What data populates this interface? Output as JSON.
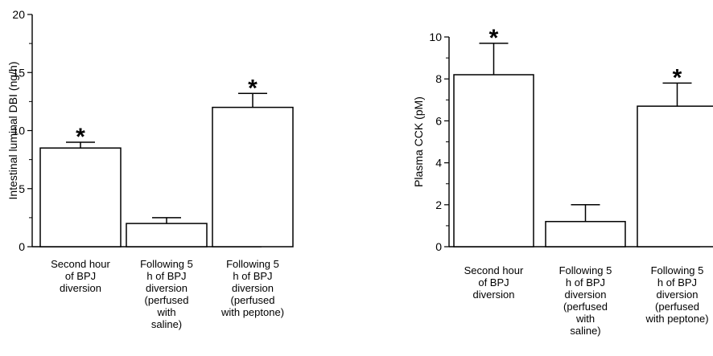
{
  "chart_data": [
    {
      "type": "bar",
      "ylabel": "Intestinal luminal DBI (ng/h)",
      "ylim": [
        0,
        20
      ],
      "yticks": [
        0,
        5,
        10,
        15,
        20
      ],
      "grid": false,
      "categories": [
        [
          "Second hour",
          "of BPJ",
          "diversion"
        ],
        [
          "Following 5",
          "h of BPJ",
          "diversion",
          "(perfused",
          "with",
          "saline)"
        ],
        [
          "Following 5",
          "h of BPJ",
          "diversion",
          "(perfused",
          "with peptone)"
        ]
      ],
      "values": [
        8.5,
        2.0,
        12.0
      ],
      "error": [
        0.5,
        0.5,
        1.2
      ],
      "significance": [
        "*",
        "",
        "*"
      ]
    },
    {
      "type": "bar",
      "ylabel": "Plasma CCK (pM)",
      "ylim": [
        0,
        10
      ],
      "yticks": [
        0,
        2,
        4,
        6,
        8,
        10
      ],
      "grid": false,
      "categories": [
        [
          "Second hour",
          "of BPJ",
          "diversion"
        ],
        [
          "Following 5",
          "h of BPJ",
          "diversion",
          "(perfused",
          "with",
          "saline)"
        ],
        [
          "Following 5",
          "h of BPJ",
          "diversion",
          "(perfused",
          "with peptone)"
        ]
      ],
      "values": [
        8.2,
        1.2,
        6.7
      ],
      "error": [
        1.5,
        0.8,
        1.1
      ],
      "significance": [
        "*",
        "",
        "*"
      ]
    }
  ]
}
